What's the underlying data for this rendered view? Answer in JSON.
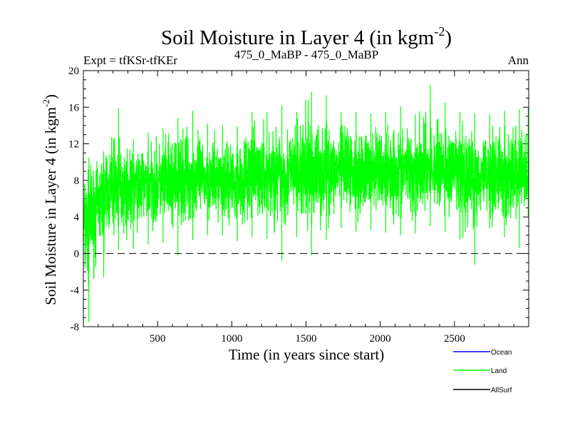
{
  "chart_data": {
    "type": "line",
    "title": "Soil Moisture in Layer 4 (in kgm",
    "title_sup": "-2",
    "title_end": ")",
    "subtitle_left": "Expt = tfKSr-tfKEr",
    "subtitle_center": "475_0_MaBP - 475_0_MaBP",
    "subtitle_right": "Ann",
    "xlabel": "Time (in years since start)",
    "ylabel": "Soil Moisture in Layer 4 (in kgm",
    "ylabel_sup": "-2",
    "ylabel_end": ")",
    "xlim": [
      0,
      3000
    ],
    "ylim": [
      -8,
      20
    ],
    "x_ticks": [
      500,
      1000,
      1500,
      2000,
      2500
    ],
    "x_tick_labels": [
      "500",
      "1000",
      "1500",
      "2000",
      "2500"
    ],
    "y_ticks": [
      -8,
      -4,
      0,
      4,
      8,
      12,
      16,
      20
    ],
    "y_tick_labels": [
      "-8",
      "-4",
      "0",
      "4",
      "8",
      "12",
      "16",
      "20"
    ],
    "zero_line": 0,
    "series": [
      {
        "name": "Ocean",
        "color": "#0000ff",
        "values": []
      },
      {
        "name": "Land",
        "color": "#00ff00",
        "x_step": 100,
        "x": [
          0,
          100,
          200,
          300,
          400,
          500,
          600,
          700,
          800,
          900,
          1000,
          1100,
          1200,
          1300,
          1400,
          1500,
          1600,
          1700,
          1800,
          1900,
          2000,
          2100,
          2200,
          2300,
          2400,
          2500,
          2600,
          2700,
          2800,
          2900,
          3000
        ],
        "mean": [
          3.0,
          6.0,
          6.8,
          7.2,
          7.5,
          7.7,
          7.9,
          8.0,
          8.1,
          8.2,
          8.3,
          8.4,
          8.5,
          8.6,
          8.7,
          8.8,
          8.9,
          8.9,
          9.0,
          9.0,
          9.1,
          9.1,
          9.2,
          9.2,
          9.1,
          9.0,
          8.9,
          8.8,
          8.7,
          8.6,
          8.5
        ],
        "max": [
          10.5,
          11.2,
          15.9,
          12.5,
          13.2,
          13.7,
          14.8,
          15.6,
          14.2,
          14.0,
          13.9,
          15.5,
          15.5,
          16.2,
          15.5,
          17.7,
          17.3,
          15.5,
          15.5,
          15.3,
          15.5,
          16.1,
          15.2,
          18.4,
          16.5,
          15.5,
          15.3,
          15.2,
          15.6,
          15.8,
          15.9
        ],
        "min": [
          -7.5,
          -2.6,
          0.4,
          0.5,
          1.0,
          1.2,
          -0.2,
          1.5,
          2.0,
          2.0,
          1.4,
          1.8,
          1.6,
          -0.8,
          1.8,
          -0.2,
          1.5,
          2.8,
          2.4,
          2.6,
          2.3,
          2.0,
          2.2,
          3.0,
          2.4,
          1.5,
          -1.2,
          2.7,
          1.8,
          0.6,
          4.0
        ]
      },
      {
        "name": "AllSurf",
        "color": "#000000",
        "values": []
      }
    ],
    "legend_position": "bottom-right"
  }
}
